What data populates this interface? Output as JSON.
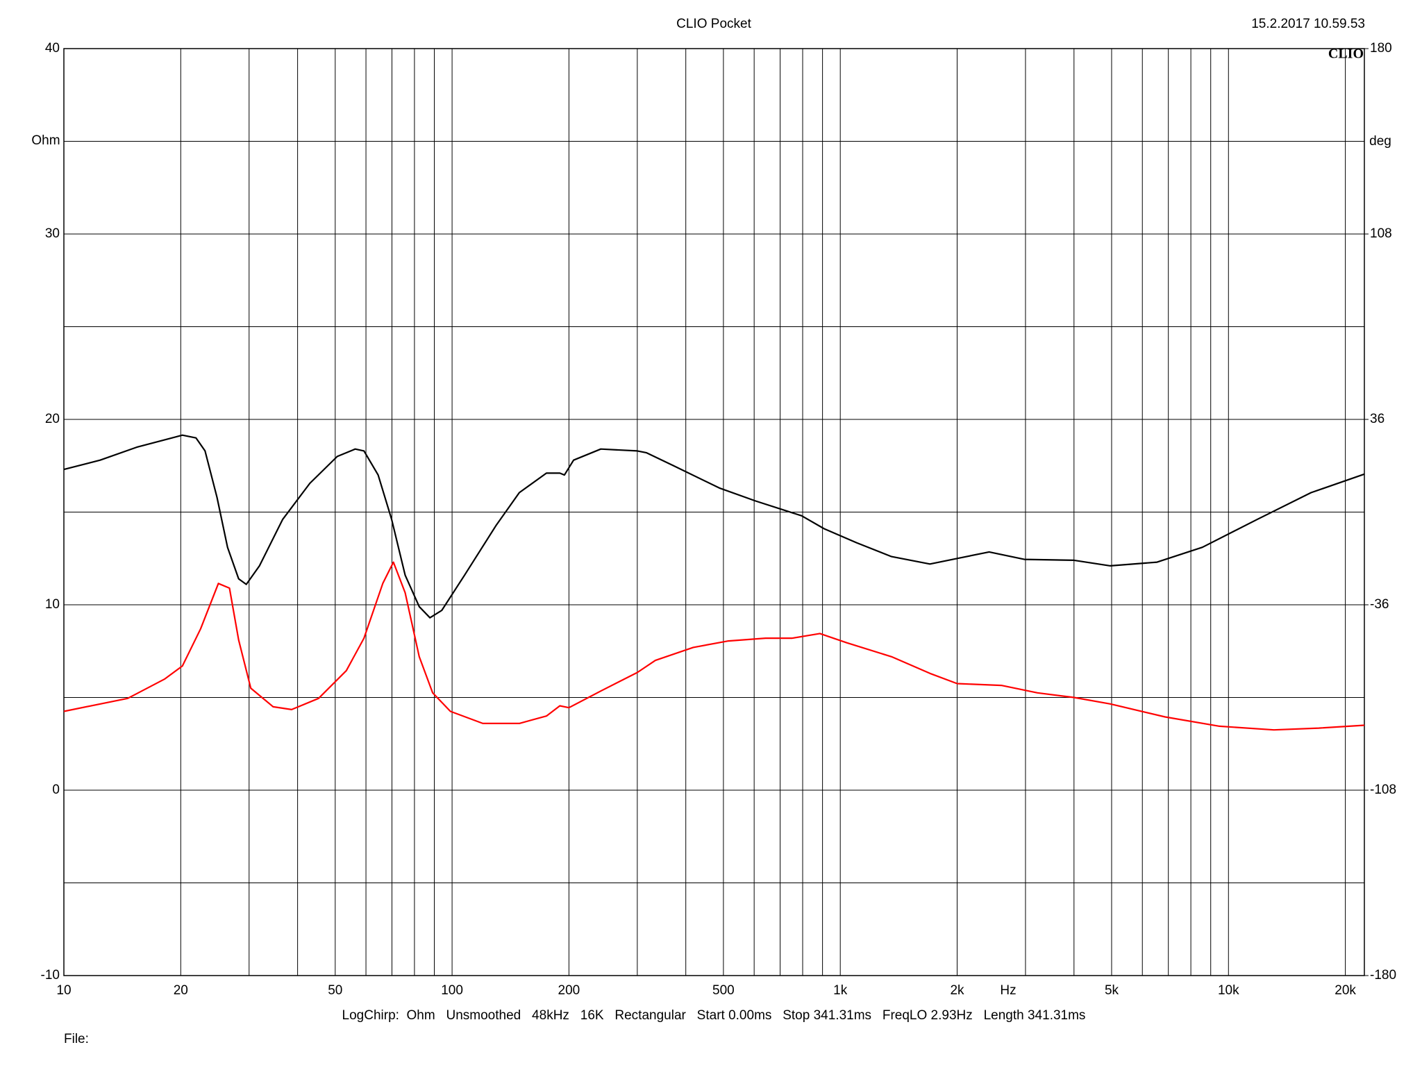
{
  "chart_data": {
    "type": "line",
    "title": "CLIO Pocket",
    "timestamp": "15.2.2017 10.59.53",
    "logo": "CLIO",
    "y_label": "Ohm",
    "y2_label": "deg",
    "x_label": "Hz",
    "footer": "LogChirp:  Ohm   Unsmoothed   48kHz   16K   Rectangular   Start 0.00ms   Stop 341.31ms   FreqLO 2.93Hz   Length 341.31ms",
    "file_label": "File:",
    "xscale": "log",
    "grid": true,
    "xlim": [
      10,
      22390
    ],
    "xticks": [
      10,
      20,
      50,
      100,
      200,
      500,
      {
        "value": 1000,
        "label": "1k"
      },
      {
        "value": 2000,
        "label": "2k"
      },
      {
        "value": 5000,
        "label": "5k"
      },
      {
        "value": 10000,
        "label": "10k"
      },
      {
        "value": 20000,
        "label": "20k"
      }
    ],
    "xminor_ticks": [
      30,
      40,
      60,
      70,
      80,
      90,
      300,
      400,
      600,
      700,
      800,
      900,
      3000,
      4000,
      6000,
      7000,
      8000,
      9000
    ],
    "ylim": [
      -10,
      40
    ],
    "yticks": [
      -10,
      0,
      10,
      20,
      30,
      40
    ],
    "yminor_ticks": [
      -5,
      5,
      15,
      25,
      35
    ],
    "y2lim": [
      -180,
      180
    ],
    "y2ticks": [
      -180,
      -108,
      -36,
      36,
      108,
      180
    ],
    "series": [
      {
        "color": "#000000",
        "x": [
          10,
          12.4,
          15.4,
          20.2,
          21.9,
          23.1,
          24.8,
          26.4,
          28.2,
          29.5,
          31.9,
          36.6,
          43,
          50.6,
          56.3,
          59.3,
          64.5,
          69.9,
          75.7,
          82.3,
          87.7,
          94.1,
          107.7,
          130,
          149,
          175,
          189.5,
          194.7,
          205.6,
          241.6,
          300,
          317,
          372,
          488,
          605,
          795,
          909,
          1101,
          1355,
          1702,
          2000,
          2418,
          2980,
          4001,
          4961,
          6545,
          8567,
          11843,
          16320,
          22390
        ],
        "values": [
          17.3,
          17.8,
          18.5,
          19.15,
          19.0,
          18.3,
          15.8,
          13.1,
          11.4,
          11.1,
          12.1,
          14.6,
          16.55,
          18.0,
          18.4,
          18.3,
          17.0,
          14.6,
          11.6,
          9.9,
          9.3,
          9.7,
          11.6,
          14.3,
          16.05,
          17.1,
          17.1,
          17.0,
          17.8,
          18.4,
          18.3,
          18.2,
          17.5,
          16.3,
          15.6,
          14.8,
          14.1,
          13.35,
          12.6,
          12.2,
          12.5,
          12.85,
          12.45,
          12.4,
          12.1,
          12.3,
          13.1,
          14.6,
          16.05,
          17.05
        ]
      },
      {
        "color": "#ff0000",
        "x": [
          10,
          14.6,
          18.2,
          20.2,
          22.5,
          25,
          26.7,
          28.2,
          30.3,
          34.6,
          38.6,
          45.3,
          53.4,
          59.3,
          66.3,
          70.6,
          75.7,
          82.3,
          89.1,
          99,
          120,
          149,
          175,
          189.5,
          200,
          241.6,
          300,
          334,
          418,
          515,
          642,
          752,
          886,
          1039,
          1355,
          1702,
          2000,
          2600,
          3220,
          4001,
          4961,
          6865,
          9480,
          13090,
          17080,
          22390
        ],
        "values": [
          4.25,
          4.95,
          6.0,
          6.7,
          8.7,
          11.15,
          10.9,
          8.1,
          5.5,
          4.5,
          4.35,
          4.95,
          6.45,
          8.2,
          11.15,
          12.3,
          10.65,
          7.2,
          5.25,
          4.25,
          3.6,
          3.6,
          4.0,
          4.55,
          4.45,
          5.35,
          6.35,
          7.0,
          7.7,
          8.05,
          8.2,
          8.2,
          8.45,
          7.95,
          7.2,
          6.3,
          5.75,
          5.65,
          5.25,
          5.0,
          4.65,
          3.95,
          3.45,
          3.25,
          3.35,
          3.5
        ]
      }
    ]
  }
}
